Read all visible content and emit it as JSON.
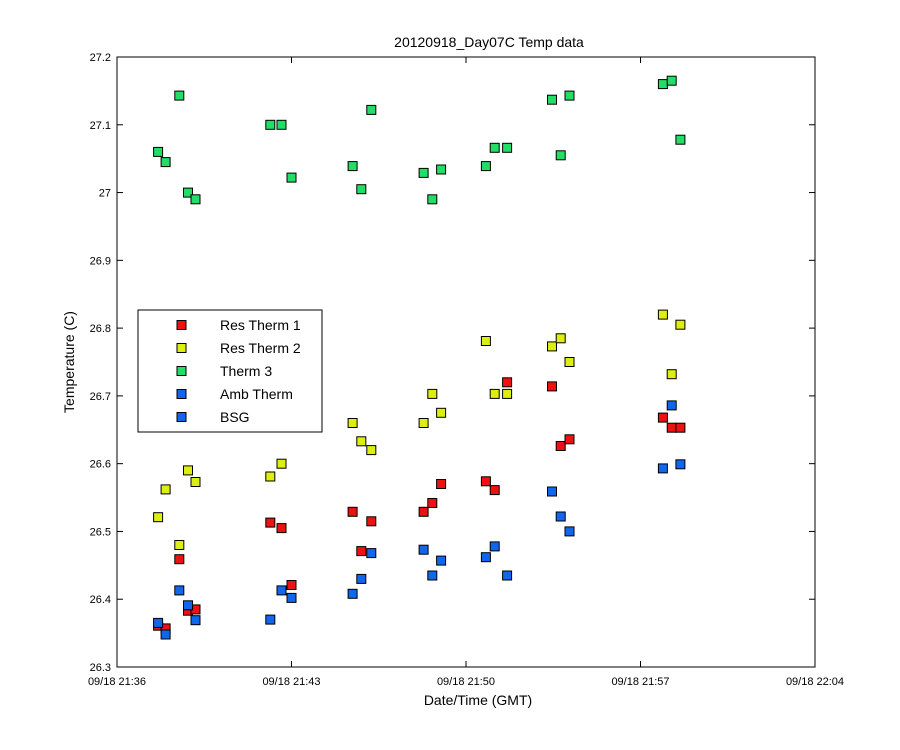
{
  "chart_data": {
    "type": "scatter",
    "title": "20120918_Day07C Temp data",
    "xlabel": "Date/Time (GMT)",
    "ylabel": "Temperature (C)",
    "xlim": [
      "09/18 21:36",
      "09/18 22:04"
    ],
    "ylim": [
      26.3,
      27.2
    ],
    "x_ticks": [
      "09/18 21:36",
      "09/18 21:43",
      "09/18 21:50",
      "09/18 21:57",
      "09/18 22:04"
    ],
    "y_ticks": [
      "26.3",
      "26.4",
      "26.5",
      "26.6",
      "26.7",
      "26.8",
      "26.9",
      "27",
      "27.1",
      "27.2"
    ],
    "legend_position": "left",
    "grid": false,
    "series": [
      {
        "name": "Res Therm 1",
        "color": "#ee1111",
        "points": [
          [
            "21:37:39",
            26.361
          ],
          [
            "21:37:57",
            26.357
          ],
          [
            "21:38:30",
            26.459
          ],
          [
            "21:38:51",
            26.383
          ],
          [
            "21:39:09",
            26.385
          ],
          [
            "21:42:09",
            26.513
          ],
          [
            "21:42:36",
            26.505
          ],
          [
            "21:43:00",
            26.421
          ],
          [
            "21:45:27",
            26.529
          ],
          [
            "21:45:48",
            26.471
          ],
          [
            "21:46:12",
            26.515
          ],
          [
            "21:48:18",
            26.529
          ],
          [
            "21:48:39",
            26.542
          ],
          [
            "21:49:00",
            26.57
          ],
          [
            "21:50:48",
            26.574
          ],
          [
            "21:51:09",
            26.561
          ],
          [
            "21:51:39",
            26.72
          ],
          [
            "21:53:27",
            26.714
          ],
          [
            "21:53:48",
            26.626
          ],
          [
            "21:54:09",
            26.636
          ],
          [
            "21:57:54",
            26.668
          ],
          [
            "21:58:15",
            26.653
          ],
          [
            "21:58:36",
            26.653
          ]
        ]
      },
      {
        "name": "Res Therm 2",
        "color": "#ddee11",
        "points": [
          [
            "21:37:39",
            26.521
          ],
          [
            "21:37:57",
            26.562
          ],
          [
            "21:38:30",
            26.48
          ],
          [
            "21:38:51",
            26.59
          ],
          [
            "21:39:09",
            26.573
          ],
          [
            "21:42:09",
            26.581
          ],
          [
            "21:42:36",
            26.6
          ],
          [
            "21:45:27",
            26.66
          ],
          [
            "21:45:48",
            26.633
          ],
          [
            "21:46:12",
            26.62
          ],
          [
            "21:48:18",
            26.66
          ],
          [
            "21:48:39",
            26.703
          ],
          [
            "21:49:00",
            26.675
          ],
          [
            "21:50:48",
            26.781
          ],
          [
            "21:51:09",
            26.703
          ],
          [
            "21:51:39",
            26.703
          ],
          [
            "21:53:27",
            26.773
          ],
          [
            "21:53:48",
            26.785
          ],
          [
            "21:54:09",
            26.75
          ],
          [
            "21:57:54",
            26.82
          ],
          [
            "21:58:15",
            26.732
          ],
          [
            "21:58:36",
            26.805
          ]
        ]
      },
      {
        "name": "Therm 3",
        "color": "#22dd66",
        "points": [
          [
            "21:37:39",
            27.06
          ],
          [
            "21:37:57",
            27.045
          ],
          [
            "21:38:30",
            27.143
          ],
          [
            "21:38:51",
            27.0
          ],
          [
            "21:39:09",
            26.99
          ],
          [
            "21:42:09",
            27.1
          ],
          [
            "21:42:36",
            27.1
          ],
          [
            "21:43:00",
            27.022
          ],
          [
            "21:45:27",
            27.039
          ],
          [
            "21:45:48",
            27.005
          ],
          [
            "21:46:12",
            27.122
          ],
          [
            "21:48:18",
            27.029
          ],
          [
            "21:48:39",
            26.99
          ],
          [
            "21:49:00",
            27.034
          ],
          [
            "21:50:48",
            27.039
          ],
          [
            "21:51:09",
            27.066
          ],
          [
            "21:51:39",
            27.066
          ],
          [
            "21:53:27",
            27.137
          ],
          [
            "21:53:48",
            27.055
          ],
          [
            "21:54:09",
            27.143
          ],
          [
            "21:57:54",
            27.16
          ],
          [
            "21:58:15",
            27.165
          ],
          [
            "21:58:36",
            27.078
          ]
        ]
      },
      {
        "name": "Amb Therm",
        "color": "#1166ee",
        "points": [
          [
            "21:37:39",
            26.365
          ],
          [
            "21:37:57",
            26.348
          ],
          [
            "21:38:30",
            26.413
          ],
          [
            "21:38:51",
            26.391
          ],
          [
            "21:39:09",
            26.369
          ],
          [
            "21:42:09",
            26.37
          ],
          [
            "21:42:36",
            26.413
          ],
          [
            "21:43:00",
            26.402
          ],
          [
            "21:45:27",
            26.408
          ],
          [
            "21:45:48",
            26.43
          ],
          [
            "21:46:12",
            26.468
          ],
          [
            "21:48:18",
            26.473
          ],
          [
            "21:48:39",
            26.435
          ],
          [
            "21:49:00",
            26.457
          ],
          [
            "21:50:48",
            26.462
          ],
          [
            "21:51:09",
            26.478
          ],
          [
            "21:51:39",
            26.435
          ],
          [
            "21:53:27",
            26.559
          ],
          [
            "21:53:48",
            26.522
          ],
          [
            "21:54:09",
            26.5
          ],
          [
            "21:57:54",
            26.593
          ],
          [
            "21:58:15",
            26.686
          ],
          [
            "21:58:36",
            26.599
          ]
        ]
      },
      {
        "name": "BSG",
        "color": "#1166ee",
        "points": []
      }
    ]
  }
}
